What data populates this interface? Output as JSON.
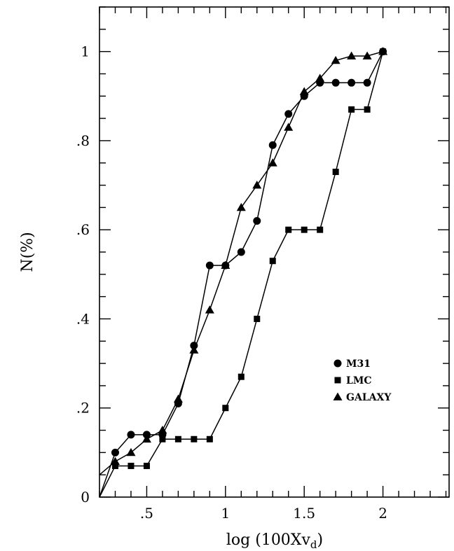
{
  "chart_data": {
    "type": "line",
    "xlabel": "log (100Xv",
    "xlabel_sub": "d",
    "xlabel_close": ")",
    "ylabel": "N(%)",
    "xlim": [
      0.2,
      2.42
    ],
    "ylim": [
      0,
      1.1
    ],
    "x_ticks": [
      {
        "v": 0.5,
        "label": ".5"
      },
      {
        "v": 1.0,
        "label": "1"
      },
      {
        "v": 1.5,
        "label": "1.5"
      },
      {
        "v": 2.0,
        "label": "2"
      }
    ],
    "y_ticks": [
      {
        "v": 0,
        "label": "0"
      },
      {
        "v": 0.2,
        "label": ".2"
      },
      {
        "v": 0.4,
        "label": ".4"
      },
      {
        "v": 0.6,
        "label": ".6"
      },
      {
        "v": 0.8,
        "label": ".8"
      },
      {
        "v": 1.0,
        "label": "1"
      }
    ],
    "x_minor_step": 0.1,
    "y_minor_step": 0.05,
    "grid": false,
    "legend_position": "right-lower",
    "series": [
      {
        "name": "M31",
        "marker": "circle",
        "points": [
          [
            0.2,
            0.0
          ],
          [
            0.3,
            0.1
          ],
          [
            0.4,
            0.14
          ],
          [
            0.5,
            0.14
          ],
          [
            0.6,
            0.14
          ],
          [
            0.7,
            0.21
          ],
          [
            0.8,
            0.34
          ],
          [
            0.9,
            0.52
          ],
          [
            1.0,
            0.52
          ],
          [
            1.1,
            0.55
          ],
          [
            1.2,
            0.62
          ],
          [
            1.3,
            0.79
          ],
          [
            1.4,
            0.86
          ],
          [
            1.5,
            0.9
          ],
          [
            1.6,
            0.93
          ],
          [
            1.7,
            0.93
          ],
          [
            1.8,
            0.93
          ],
          [
            1.9,
            0.93
          ],
          [
            2.0,
            1.0
          ]
        ]
      },
      {
        "name": "LMC",
        "marker": "square",
        "points": [
          [
            0.2,
            0.0
          ],
          [
            0.3,
            0.07
          ],
          [
            0.4,
            0.07
          ],
          [
            0.5,
            0.07
          ],
          [
            0.6,
            0.13
          ],
          [
            0.7,
            0.13
          ],
          [
            0.8,
            0.13
          ],
          [
            0.9,
            0.13
          ],
          [
            1.0,
            0.2
          ],
          [
            1.1,
            0.27
          ],
          [
            1.2,
            0.4
          ],
          [
            1.3,
            0.53
          ],
          [
            1.4,
            0.6
          ],
          [
            1.5,
            0.6
          ],
          [
            1.6,
            0.6
          ],
          [
            1.7,
            0.73
          ],
          [
            1.8,
            0.87
          ],
          [
            1.9,
            0.87
          ],
          [
            2.0,
            1.0
          ]
        ]
      },
      {
        "name": "GALAXY",
        "marker": "triangle",
        "points": [
          [
            0.2,
            0.05
          ],
          [
            0.3,
            0.08
          ],
          [
            0.4,
            0.1
          ],
          [
            0.5,
            0.13
          ],
          [
            0.6,
            0.15
          ],
          [
            0.7,
            0.22
          ],
          [
            0.8,
            0.33
          ],
          [
            0.9,
            0.42
          ],
          [
            1.0,
            0.52
          ],
          [
            1.1,
            0.65
          ],
          [
            1.2,
            0.7
          ],
          [
            1.3,
            0.75
          ],
          [
            1.4,
            0.83
          ],
          [
            1.5,
            0.91
          ],
          [
            1.6,
            0.94
          ],
          [
            1.7,
            0.98
          ],
          [
            1.8,
            0.99
          ],
          [
            1.9,
            0.99
          ],
          [
            2.0,
            1.0
          ]
        ]
      }
    ]
  }
}
